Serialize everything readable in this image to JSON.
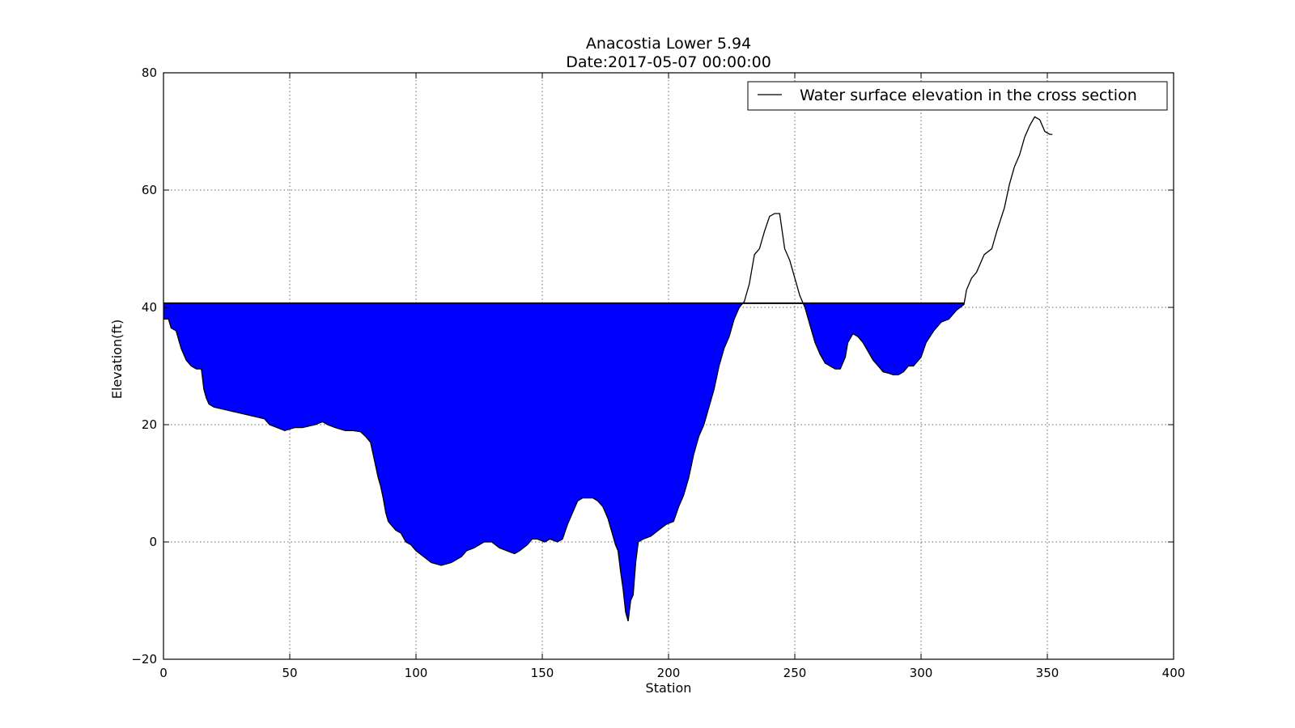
{
  "chart_data": {
    "type": "area",
    "title": "Anacostia Lower 5.94",
    "subtitle": "Date:2017-05-07 00:00:00",
    "xlabel": "Station",
    "ylabel": "Elevation(ft)",
    "xlim": [
      0,
      400
    ],
    "ylim": [
      -20,
      80
    ],
    "xticks": [
      "0",
      "50",
      "100",
      "150",
      "200",
      "250",
      "300",
      "350",
      "400"
    ],
    "yticks": [
      "−20",
      "0",
      "20",
      "40",
      "60",
      "80"
    ],
    "ytick_values": [
      -20,
      0,
      20,
      40,
      60,
      80
    ],
    "xtick_values": [
      0,
      50,
      100,
      150,
      200,
      250,
      300,
      350,
      400
    ],
    "grid": true,
    "legend_position": "top-right",
    "water_surface_elevation": 40.7,
    "water_fill_color": "#0000ff",
    "line_color": "#000000",
    "series": [
      {
        "name": "Water surface elevation in the cross section",
        "x": [
          0,
          2,
          3,
          5,
          7,
          8,
          9,
          11,
          13,
          15,
          16,
          17,
          18,
          20,
          25,
          30,
          35,
          40,
          42,
          45,
          48,
          52,
          55,
          60,
          63,
          65,
          68,
          72,
          75,
          78,
          80,
          82,
          84,
          85,
          86,
          87,
          88,
          89,
          90,
          92,
          94,
          96,
          98,
          100,
          103,
          106,
          110,
          114,
          118,
          120,
          123,
          127,
          130,
          133,
          136,
          139,
          141,
          144,
          146,
          148,
          151,
          153,
          156,
          158,
          160,
          162,
          163,
          164,
          166,
          168,
          170,
          172,
          174,
          176,
          178,
          179,
          180,
          181,
          182,
          183,
          184,
          185,
          186,
          187,
          188,
          190,
          193,
          196,
          199,
          202,
          204,
          206,
          208,
          210,
          212,
          214,
          216,
          218,
          220,
          222,
          224,
          226,
          228,
          230,
          232,
          234,
          236,
          238,
          240,
          242,
          244,
          245,
          246,
          248,
          250,
          252,
          254,
          256,
          258,
          260,
          262,
          264,
          266,
          268,
          270,
          271,
          273,
          275,
          277,
          279,
          281,
          283,
          285,
          287,
          289,
          291,
          293,
          295,
          297,
          300,
          302,
          305,
          308,
          311,
          314,
          317,
          318,
          320,
          322,
          325,
          328,
          330,
          333,
          335,
          337,
          339,
          341,
          343,
          345,
          347,
          349,
          351,
          352
        ],
        "y": [
          38,
          38,
          36.5,
          36,
          33,
          32,
          31,
          30,
          29.5,
          29.5,
          26,
          24.5,
          23.5,
          23,
          22.5,
          22,
          21.5,
          21,
          20,
          19.5,
          19,
          19.5,
          19.5,
          20,
          20.5,
          20,
          19.5,
          19,
          19,
          18.8,
          18,
          17,
          13,
          11,
          9.5,
          7.5,
          5,
          3.5,
          3,
          2,
          1.5,
          0,
          -0.5,
          -1.5,
          -2.5,
          -3.5,
          -4,
          -3.5,
          -2.5,
          -1.5,
          -1,
          0,
          0,
          -1,
          -1.5,
          -2,
          -1.5,
          -0.5,
          0.5,
          0.5,
          0,
          0.5,
          0,
          0.5,
          3,
          5,
          6,
          7,
          7.5,
          7.5,
          7.5,
          7,
          6,
          4,
          1,
          -0.5,
          -1.5,
          -5,
          -8,
          -12,
          -13.5,
          -10,
          -9,
          -3.5,
          0,
          0.5,
          1,
          2,
          3,
          3.5,
          6,
          8,
          11,
          15,
          18,
          20,
          23,
          26,
          30,
          33,
          35,
          38,
          40,
          41,
          44,
          49,
          50,
          53,
          55.5,
          56,
          56,
          53,
          50,
          48,
          45,
          42,
          40,
          37,
          34,
          32,
          30.5,
          30,
          29.5,
          29.5,
          31.5,
          34,
          35.5,
          35,
          34,
          32.5,
          31,
          30,
          29,
          28.8,
          28.5,
          28.5,
          29,
          30,
          30,
          31.5,
          34,
          36,
          37.5,
          38,
          39.5,
          40.5,
          43,
          45,
          46,
          49,
          50,
          53,
          57,
          61,
          64,
          66,
          69,
          71,
          72.5,
          72,
          70,
          69.5,
          69.5
        ]
      }
    ]
  }
}
